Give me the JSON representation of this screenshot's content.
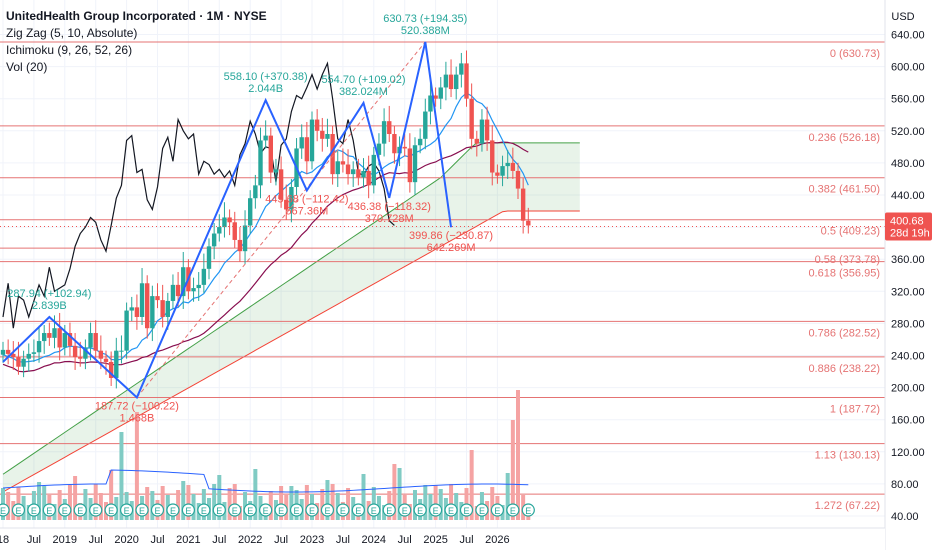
{
  "legend": {
    "symbol": "UnitedHealth Group Incorporated · 1M · NYSE",
    "zigzag": "Zig Zag (5, 10, Absolute)",
    "ichimoku": "Ichimoku (9, 26, 52, 26)",
    "volume": "Vol (20)"
  },
  "currency": "USD",
  "price_tag": {
    "value": "400.68",
    "countdown": "28d 19h"
  },
  "colors": {
    "up": "#26a69a",
    "down": "#ef5350",
    "fib": "#e57373",
    "zigzag": "#2962ff",
    "lagging": "#131722",
    "conversion": "#2196f3",
    "base": "#880e4f",
    "cloud_green": "#43a047",
    "cloud_red": "#f44336",
    "vol_up": "#80cbc4",
    "vol_down": "#f5a3a3",
    "vol_ma": "#2962ff"
  },
  "chart_data": {
    "type": "candlestick",
    "y_axis": {
      "min": 40,
      "max": 660,
      "ticks": [
        40,
        80,
        120,
        160,
        200,
        240,
        280,
        320,
        360,
        400,
        440,
        480,
        520,
        560,
        600,
        640
      ],
      "tick_labels": [
        "40.00",
        "80.00",
        "120.00",
        "160.00",
        "200.00",
        "240.00",
        "280.00",
        "320.00",
        "360.00",
        "400.00",
        "440.00",
        "480.00",
        "520.00",
        "560.00",
        "600.00",
        "640.00"
      ]
    },
    "x_axis": {
      "start": "2018-01",
      "labels": [
        {
          "date": "2018-01",
          "text": "18"
        },
        {
          "date": "2018-07",
          "text": "Jul"
        },
        {
          "date": "2019-01",
          "text": "2019"
        },
        {
          "date": "2019-07",
          "text": "Jul"
        },
        {
          "date": "2020-01",
          "text": "2020"
        },
        {
          "date": "2020-07",
          "text": "Jul"
        },
        {
          "date": "2021-01",
          "text": "2021"
        },
        {
          "date": "2021-07",
          "text": "Jul"
        },
        {
          "date": "2022-01",
          "text": "2022"
        },
        {
          "date": "2022-07",
          "text": "Jul"
        },
        {
          "date": "2023-01",
          "text": "2023"
        },
        {
          "date": "2023-07",
          "text": "Jul"
        },
        {
          "date": "2024-01",
          "text": "2024"
        },
        {
          "date": "2024-07",
          "text": "Jul"
        },
        {
          "date": "2025-01",
          "text": "2025"
        },
        {
          "date": "2025-07",
          "text": "Jul"
        },
        {
          "date": "2026-01",
          "text": "2026"
        }
      ]
    },
    "fib_levels": [
      {
        "ratio": "0",
        "price": 630.73,
        "label": "0 (630.73)"
      },
      {
        "ratio": "0.236",
        "price": 526.18,
        "label": "0.236 (526.18)"
      },
      {
        "ratio": "0.382",
        "price": 461.5,
        "label": "0.382 (461.50)"
      },
      {
        "ratio": "0.5",
        "price": 409.23,
        "label": "0.5 (409.23)"
      },
      {
        "ratio": "0.58",
        "price": 373.78,
        "label": "0.58 (373.78)"
      },
      {
        "ratio": "0.618",
        "price": 356.95,
        "label": "0.618 (356.95)"
      },
      {
        "ratio": "0.786",
        "price": 282.52,
        "label": "0.786 (282.52)"
      },
      {
        "ratio": "0.886",
        "price": 238.22,
        "label": "0.886 (238.22)"
      },
      {
        "ratio": "1",
        "price": 187.72,
        "label": "1 (187.72)"
      },
      {
        "ratio": "1.13",
        "price": 130.13,
        "label": "1.13 (130.13)"
      },
      {
        "ratio": "1.272",
        "price": 67.22,
        "label": "1.272 (67.22)"
      }
    ],
    "zigzag_points": [
      {
        "date": "2018-01",
        "price": 232
      },
      {
        "date": "2018-10",
        "price": 287.94
      },
      {
        "date": "2020-03",
        "price": 187.72
      },
      {
        "date": "2022-04",
        "price": 558.1
      },
      {
        "date": "2022-12",
        "price": 445.68
      },
      {
        "date": "2023-11",
        "price": 554.7
      },
      {
        "date": "2024-04",
        "price": 436.38
      },
      {
        "date": "2024-11",
        "price": 630.73
      },
      {
        "date": "2025-04",
        "price": 399.86
      }
    ],
    "zigzag_labels": [
      {
        "date": "2018-10",
        "price": 287.94,
        "pos": "above",
        "color": "#26a69a",
        "line1": "287.94 (+102.94)",
        "line2": "2.839B"
      },
      {
        "date": "2020-03",
        "price": 187.72,
        "pos": "below",
        "color": "#ef5350",
        "line1": "187.72 (−100.22)",
        "line2": "1.468B"
      },
      {
        "date": "2022-04",
        "price": 558.1,
        "pos": "above",
        "color": "#26a69a",
        "line1": "558.10 (+370.38)",
        "line2": "2.044B"
      },
      {
        "date": "2022-12",
        "price": 445.68,
        "pos": "below",
        "color": "#ef5350",
        "line1": "445.68 (−112.42)",
        "line2": "567.36M"
      },
      {
        "date": "2023-11",
        "price": 554.7,
        "pos": "above",
        "color": "#26a69a",
        "line1": "554.70 (+109.02)",
        "line2": "382.024M"
      },
      {
        "date": "2024-04",
        "price": 436.38,
        "pos": "below",
        "color": "#ef5350",
        "line1": "436.38 (−118.32)",
        "line2": "370.728M"
      },
      {
        "date": "2024-11",
        "price": 630.73,
        "pos": "above",
        "color": "#26a69a",
        "line1": "630.73 (+194.35)",
        "line2": "520.388M"
      },
      {
        "date": "2025-04",
        "price": 399.86,
        "pos": "below",
        "color": "#ef5350",
        "line1": "399.86 (−230.87)",
        "line2": "642.269M"
      }
    ],
    "closes": [
      247,
      242,
      238,
      226,
      236,
      242,
      244,
      258,
      268,
      262,
      274,
      250,
      268,
      252,
      238,
      236,
      250,
      268,
      246,
      236,
      232,
      212,
      246,
      246,
      296,
      300,
      288,
      330,
      274,
      314,
      309,
      288,
      308,
      328,
      314,
      350,
      320,
      324,
      328,
      348,
      376,
      392,
      400,
      412,
      406,
      384,
      370,
      402,
      436,
      452,
      508,
      514,
      468,
      472,
      434,
      422,
      450,
      498,
      512,
      482,
      534,
      520,
      510,
      516,
      466,
      482,
      478,
      466,
      472,
      462,
      470,
      452,
      490,
      504,
      532,
      516,
      492,
      500,
      498,
      456,
      502,
      510,
      544,
      564,
      560,
      574,
      590,
      572,
      590,
      604,
      560,
      510,
      504,
      534,
      508,
      468,
      464,
      476,
      480,
      470,
      448,
      408,
      402
    ]
  }
}
